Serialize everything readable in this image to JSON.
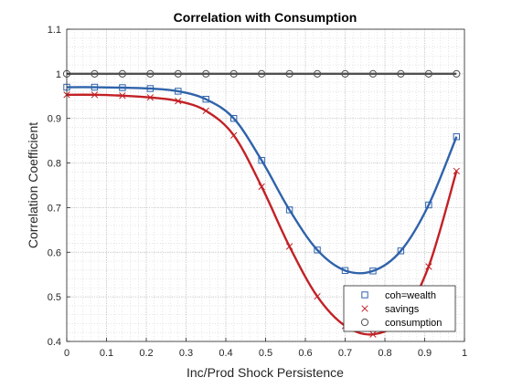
{
  "chart_data": {
    "type": "line",
    "title": "Correlation with Consumption",
    "xlabel": "Inc/Prod Shock Persistence",
    "ylabel": "Correlation Coefficient",
    "xlim": [
      0,
      1
    ],
    "ylim": [
      0.4,
      1.1
    ],
    "xticks": [
      "0",
      "0.1",
      "0.2",
      "0.3",
      "0.4",
      "0.5",
      "0.6",
      "0.7",
      "0.8",
      "0.9",
      "1"
    ],
    "yticks": [
      "0.4",
      "0.5",
      "0.6",
      "0.7",
      "0.8",
      "0.9",
      "1",
      "1.1"
    ],
    "grid": true,
    "minor_grid": true,
    "legend_position": "bottom-right",
    "x": [
      0,
      0.07,
      0.14,
      0.21,
      0.28,
      0.35,
      0.42,
      0.49,
      0.56,
      0.63,
      0.7,
      0.77,
      0.84,
      0.91,
      0.98
    ],
    "series": [
      {
        "name": "coh=wealth",
        "color": "#2f63ab",
        "marker": "square",
        "values": [
          0.97,
          0.97,
          0.969,
          0.967,
          0.961,
          0.943,
          0.9,
          0.806,
          0.695,
          0.605,
          0.559,
          0.558,
          0.603,
          0.706,
          0.859
        ]
      },
      {
        "name": "savings",
        "color": "#c22126",
        "marker": "x",
        "values": [
          0.953,
          0.953,
          0.951,
          0.947,
          0.939,
          0.917,
          0.862,
          0.747,
          0.613,
          0.501,
          0.435,
          0.416,
          0.45,
          0.568,
          0.782
        ]
      },
      {
        "name": "consumption",
        "color": "#505050",
        "marker": "circle",
        "values": [
          1,
          1,
          1,
          1,
          1,
          1,
          1,
          1,
          1,
          1,
          1,
          1,
          1,
          1,
          1
        ]
      }
    ]
  }
}
